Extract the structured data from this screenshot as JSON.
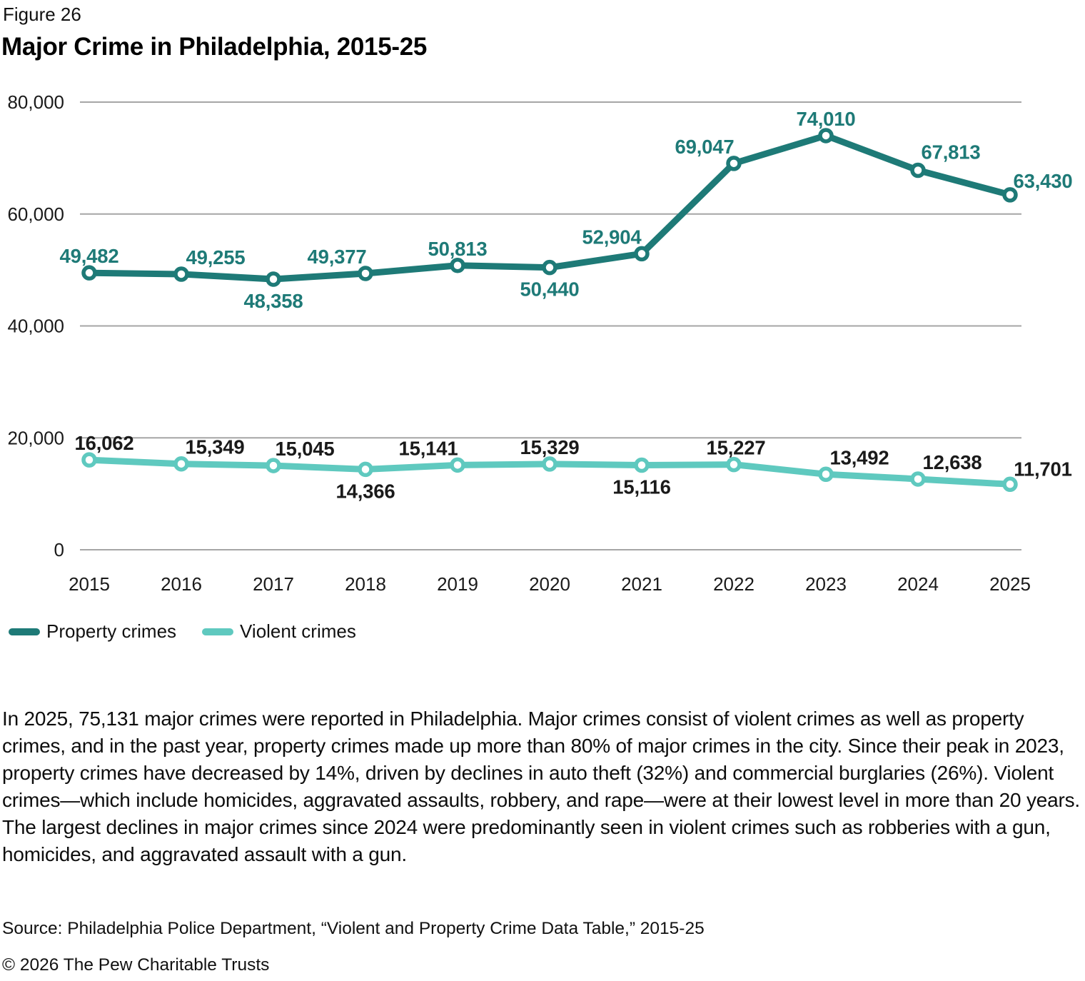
{
  "figure": {
    "label": "Figure 26",
    "title": "Major Crime in Philadelphia, 2015-25",
    "body": "In 2025, 75,131 major crimes were reported in Philadelphia. Major crimes consist of violent crimes as well as property crimes, and in the past year, property crimes made up more than 80% of major crimes in the city. Since their peak in 2023, property crimes have decreased by 14%, driven by declines in auto theft (32%) and commercial burglaries (26%). Violent crimes—which include homicides, aggravated assaults, robbery, and rape—were at their lowest level in more than 20 years. The largest declines in major crimes since 2024 were predominantly seen in violent crimes such as robberies with a gun, homicides, and aggravated assault with a gun.",
    "source": "Source: Philadelphia Police Department, “Violent and Property Crime Data Table,” 2015-25",
    "copyright": "© 2026 The Pew Charitable Trusts"
  },
  "chart_data": {
    "type": "line",
    "title": "Major Crime in Philadelphia, 2015-25",
    "x": [
      2015,
      2016,
      2017,
      2018,
      2019,
      2020,
      2021,
      2022,
      2023,
      2024,
      2025
    ],
    "series": [
      {
        "name": "Property crimes",
        "color": "#1e7a77",
        "label_color": "#1e7a77",
        "values": [
          49482,
          49255,
          48358,
          49377,
          50813,
          50440,
          52904,
          69047,
          74010,
          67813,
          63430
        ],
        "label_offsets": [
          [
            0,
            -14
          ],
          [
            48,
            -14
          ],
          [
            0,
            40
          ],
          [
            -40,
            -14
          ],
          [
            0,
            -14
          ],
          [
            0,
            40
          ],
          [
            -42,
            -14
          ],
          [
            -41,
            -14
          ],
          [
            0,
            -14
          ],
          [
            46,
            -16
          ],
          [
            46,
            -10
          ]
        ]
      },
      {
        "name": "Violent crimes",
        "color": "#5fc9bf",
        "label_color": "#1a1a1a",
        "values": [
          16062,
          15349,
          15045,
          14366,
          15141,
          15329,
          15116,
          15227,
          13492,
          12638,
          11701
        ],
        "label_offsets": [
          [
            21,
            -14
          ],
          [
            47,
            -14
          ],
          [
            44,
            -14
          ],
          [
            0,
            40
          ],
          [
            -41,
            -14
          ],
          [
            0,
            -14
          ],
          [
            0,
            40
          ],
          [
            3,
            -14
          ],
          [
            47,
            -14
          ],
          [
            48,
            -14
          ],
          [
            46,
            -12
          ]
        ]
      }
    ],
    "ylim": [
      0,
      80000
    ],
    "yticks": [
      0,
      20000,
      40000,
      60000,
      80000
    ],
    "grid": "horizontal",
    "gridline_color": "#a6a6a6",
    "axis_text_color": "#1a1a1a",
    "marker": "open-circle",
    "data_labels": true,
    "legend_position": "bottom-left"
  }
}
